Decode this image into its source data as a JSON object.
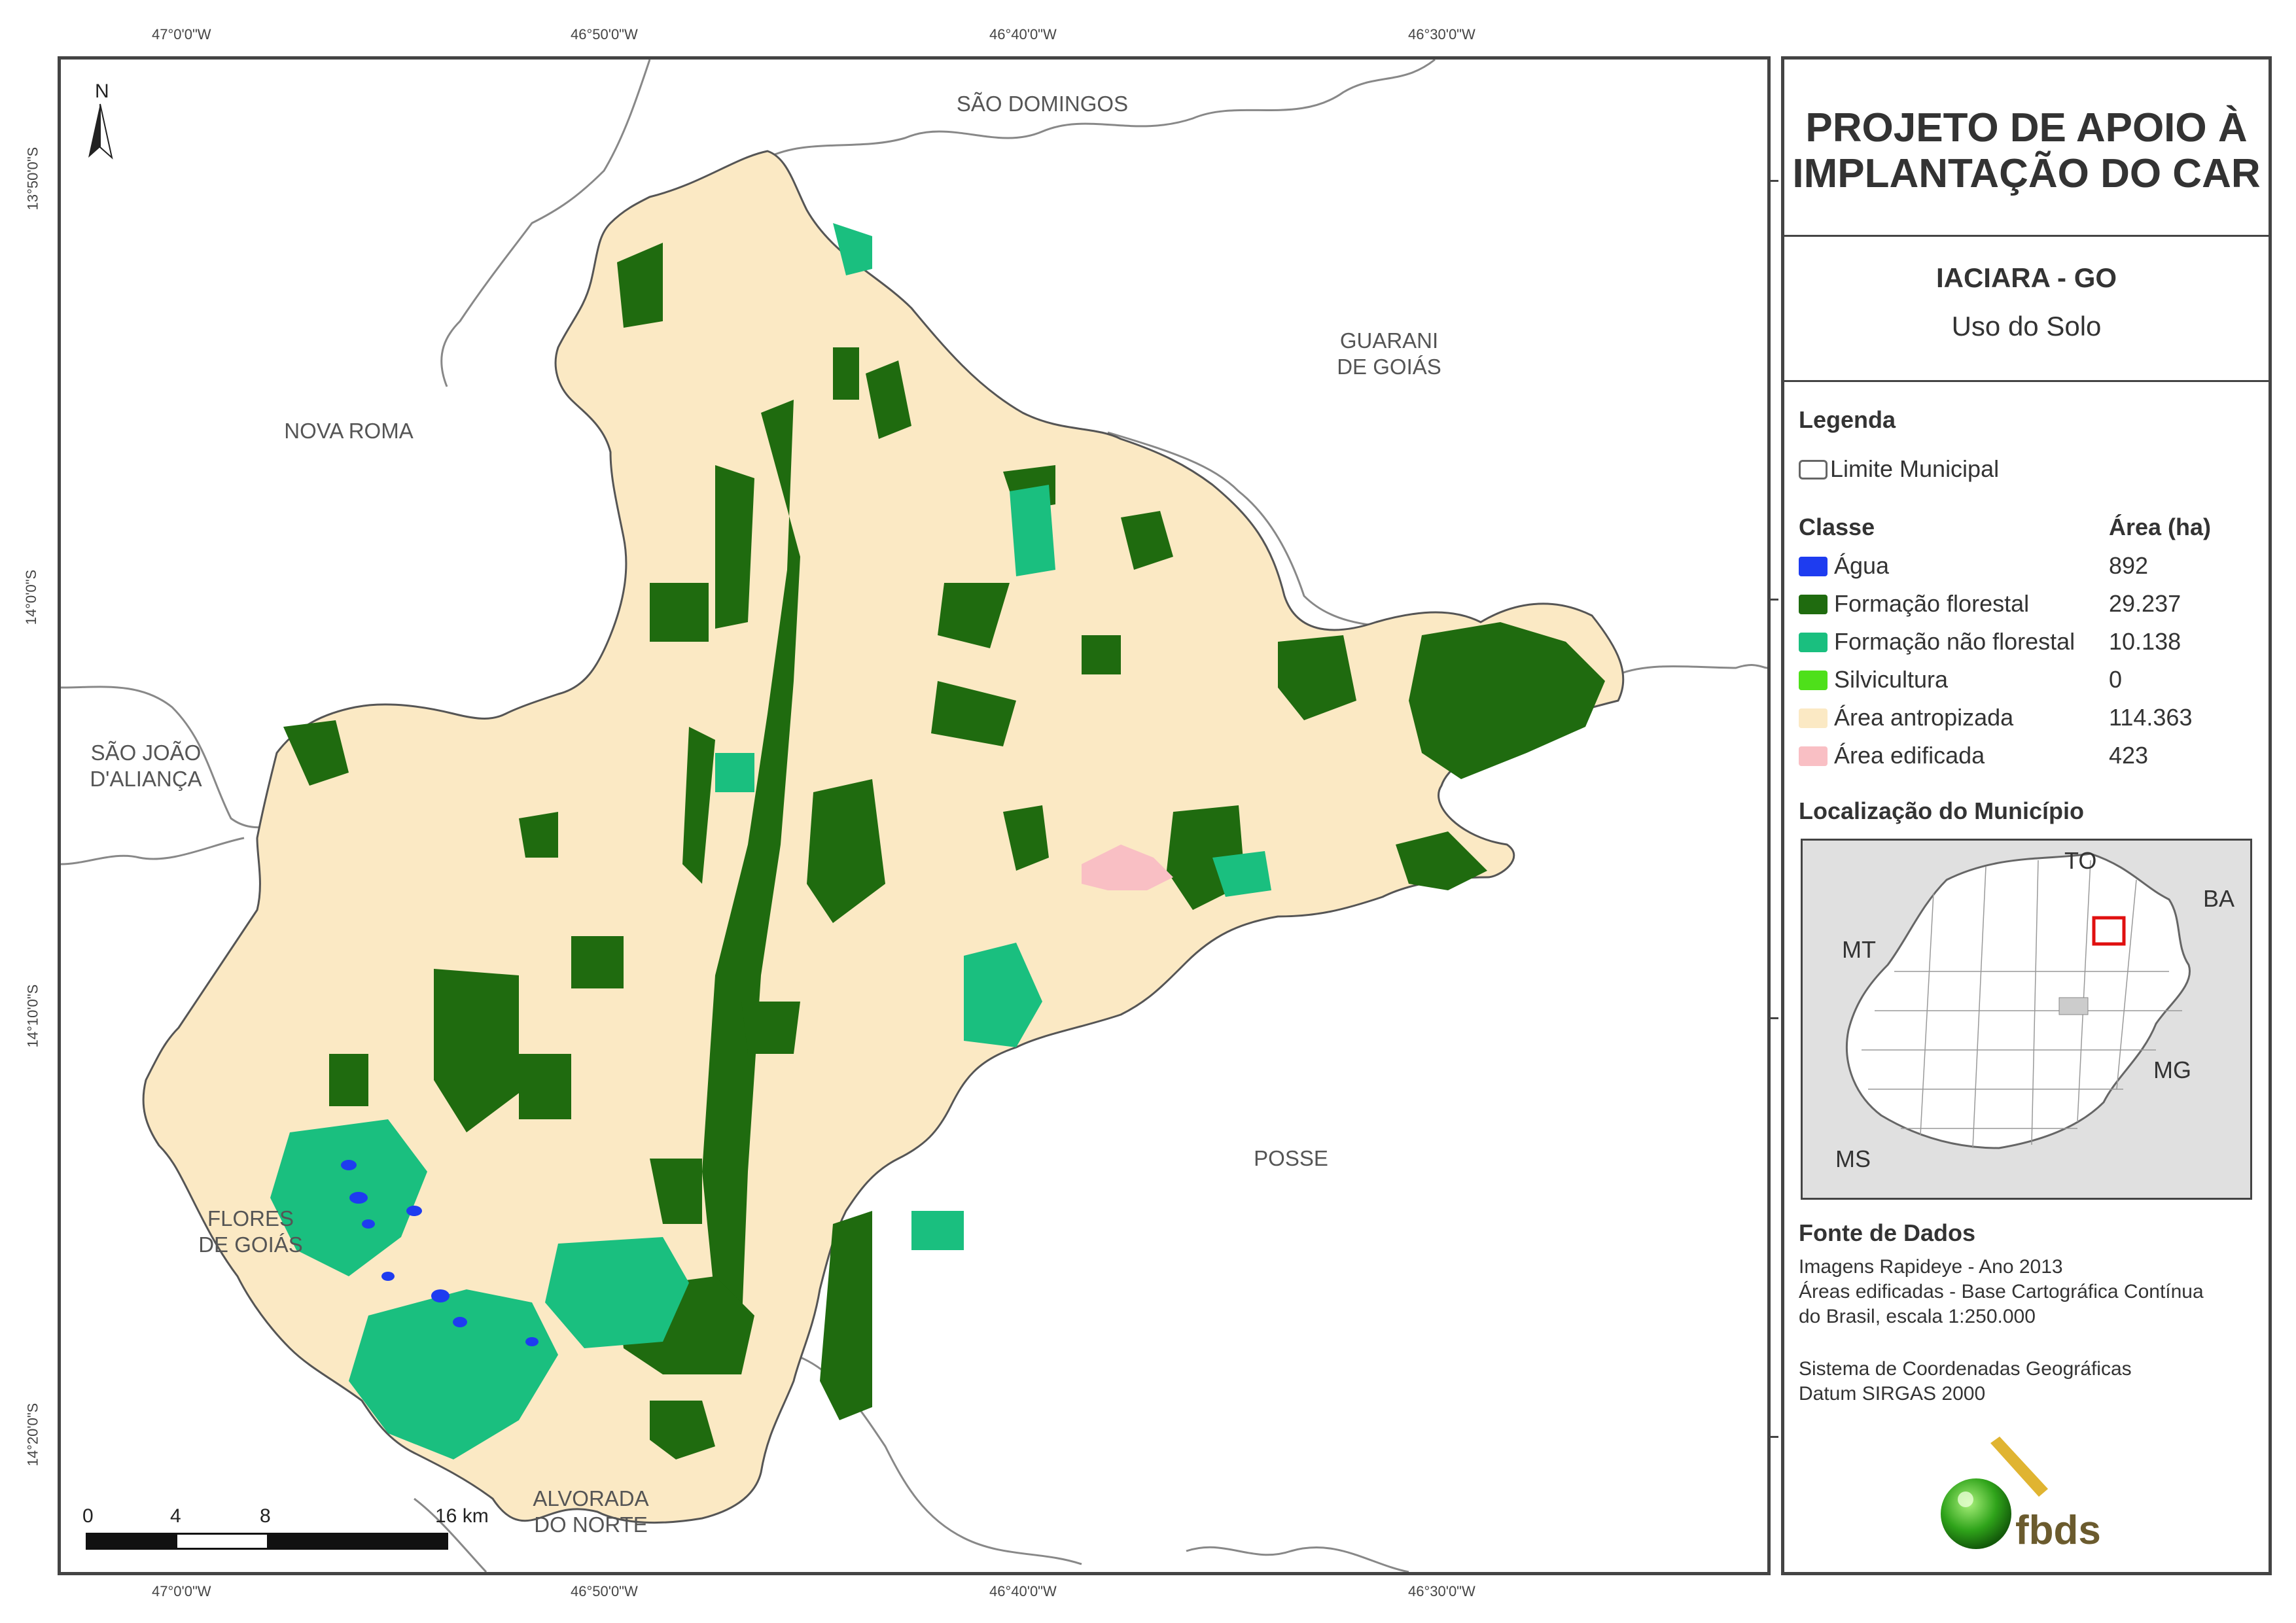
{
  "header": {
    "title": "PROJETO DE APOIO À\nIMPLANTAÇÃO DO CAR",
    "municipality": "IACIARA - GO",
    "subtitle": "Uso do Solo"
  },
  "coordinates": {
    "top": [
      "47°0'0\"W",
      "46°50'0\"W",
      "46°40'0\"W",
      "46°30'0\"W"
    ],
    "bottom": [
      "47°0'0\"W",
      "46°50'0\"W",
      "46°40'0\"W",
      "46°30'0\"W"
    ],
    "left": [
      "13°50'0\"S",
      "14°0'0\"S",
      "14°10'0\"S",
      "14°20'0\"S"
    ]
  },
  "north_arrow": "N",
  "neighbors": {
    "sao_domingos": "SÃO DOMINGOS",
    "guarani": "GUARANI\nDE GOIÁS",
    "nova_roma": "NOVA ROMA",
    "sao_joao": "SÃO JOÃO\nD'ALIANÇA",
    "posse": "POSSE",
    "flores": "FLORES\nDE GOIÁS",
    "alvorada": "ALVORADA\nDO NORTE"
  },
  "scale_bar": {
    "labels": [
      "0",
      "4",
      "8",
      "16 km"
    ]
  },
  "legend": {
    "title": "Legenda",
    "boundary_label": "Limite Municipal",
    "class_header": "Classe",
    "area_header": "Área (ha)",
    "classes": [
      {
        "label": "Água",
        "area": "892",
        "color": "#1e3cf0"
      },
      {
        "label": "Formação florestal",
        "area": "29.237",
        "color": "#1f6b0f"
      },
      {
        "label": "Formação não florestal",
        "area": "10.138",
        "color": "#1abf7f"
      },
      {
        "label": "Silvicultura",
        "area": "0",
        "color": "#4ee01a"
      },
      {
        "label": "Área antropizada",
        "area": "114.363",
        "color": "#fbe9c4"
      },
      {
        "label": "Área edificada",
        "area": "423",
        "color": "#f9bfc4"
      }
    ]
  },
  "location": {
    "title": "Localização do Município",
    "labels": {
      "to": "TO",
      "ba": "BA",
      "mt": "MT",
      "mg": "MG",
      "ms": "MS"
    }
  },
  "sources": {
    "title": "Fonte de Dados",
    "lines": [
      "Imagens Rapideye - Ano 2013",
      "Áreas edificadas - Base Cartográfica Contínua",
      "do Brasil, escala 1:250.000",
      "",
      "Sistema de Coordenadas Geográficas",
      "Datum SIRGAS 2000"
    ]
  },
  "logo": {
    "text": "fbds"
  },
  "colors": {
    "frame": "#444444",
    "boundary": "#888888",
    "inset_bg": "#e0e0e0",
    "inset_marker": "#e01010"
  }
}
